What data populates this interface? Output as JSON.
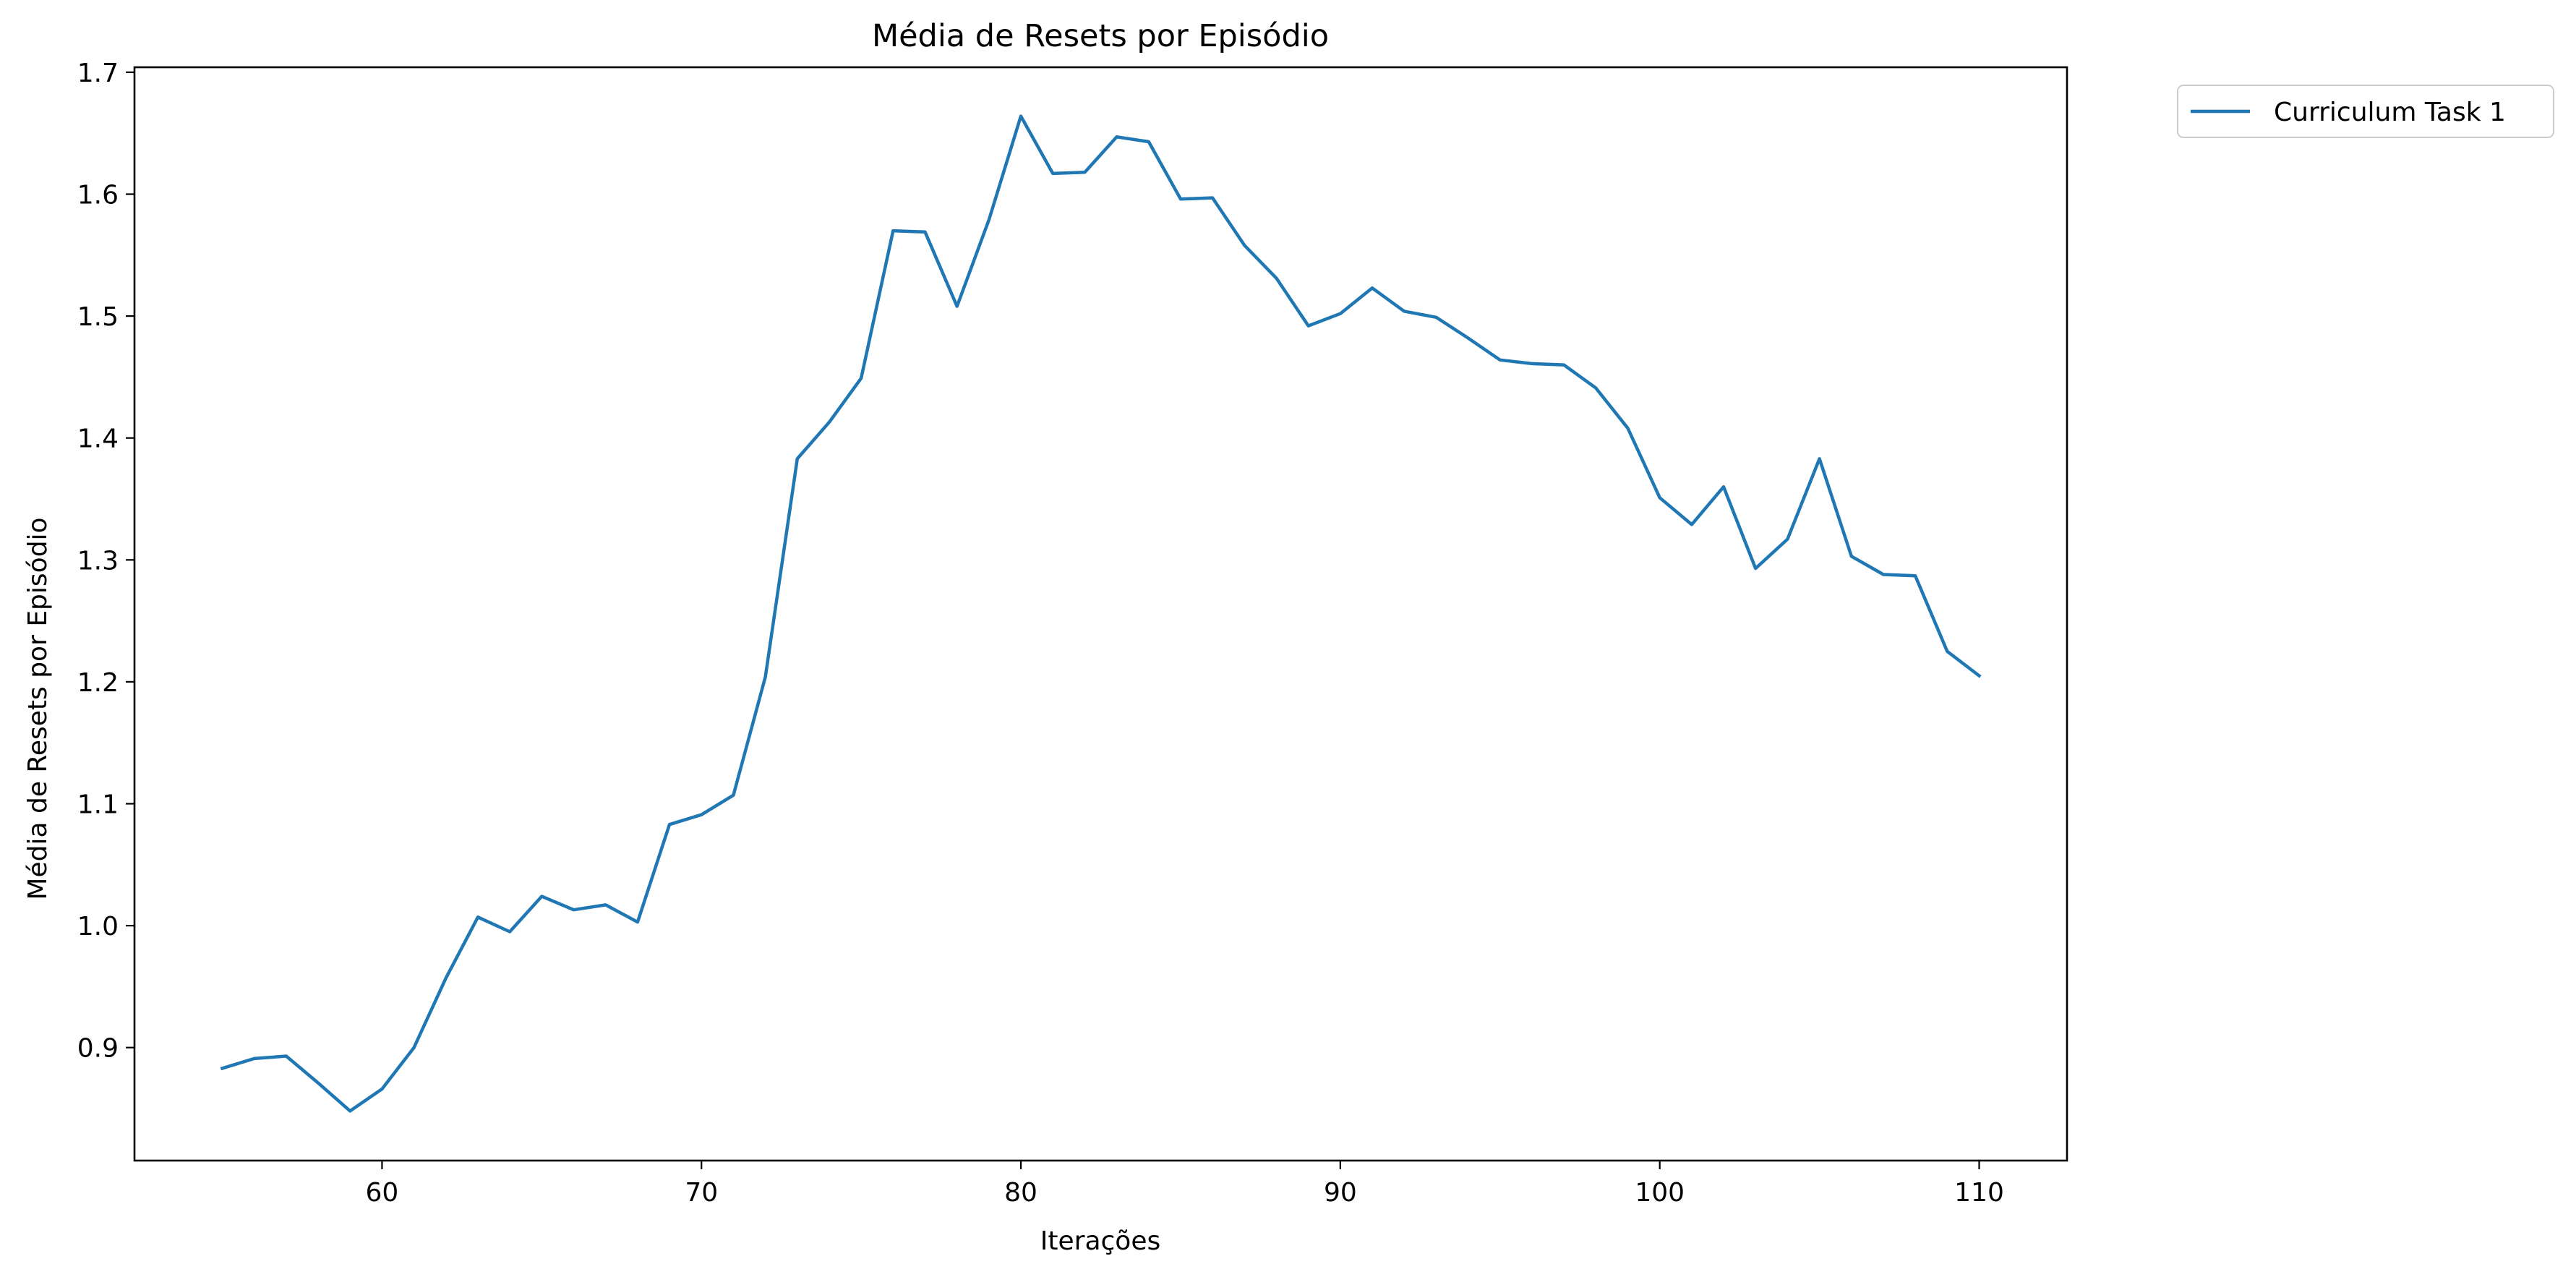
{
  "chart_data": {
    "type": "line",
    "title": "Média de Resets por Episódio",
    "xlabel": "Iterações",
    "ylabel": "Média de Resets por Episódio",
    "xlim": [
      52.25,
      112.75
    ],
    "ylim": [
      0.8073,
      1.7041
    ],
    "x_ticks": [
      60,
      70,
      80,
      90,
      100,
      110
    ],
    "x_tick_labels": [
      "60",
      "70",
      "80",
      "90",
      "100",
      "110"
    ],
    "y_ticks": [
      0.9,
      1.0,
      1.1,
      1.2,
      1.3,
      1.4,
      1.5,
      1.6,
      1.7
    ],
    "y_tick_labels": [
      "0.9",
      "1.0",
      "1.1",
      "1.2",
      "1.3",
      "1.4",
      "1.5",
      "1.6",
      "1.7"
    ],
    "grid": false,
    "legend": {
      "position": "outside-top-right"
    },
    "series": [
      {
        "name": "Curriculum Task 1",
        "color": "#1f77b4",
        "x": [
          55,
          56,
          57,
          58,
          59,
          60,
          61,
          62,
          63,
          64,
          65,
          66,
          67,
          68,
          69,
          70,
          71,
          72,
          73,
          74,
          75,
          76,
          77,
          78,
          79,
          80,
          81,
          82,
          83,
          84,
          85,
          86,
          87,
          88,
          89,
          90,
          91,
          92,
          93,
          94,
          95,
          96,
          97,
          98,
          99,
          100,
          101,
          102,
          103,
          104,
          105,
          106,
          107,
          108,
          109,
          110
        ],
        "values": [
          0.883,
          0.891,
          0.893,
          0.871,
          0.848,
          0.866,
          0.9,
          0.957,
          1.007,
          0.995,
          1.024,
          1.013,
          1.017,
          1.003,
          1.083,
          1.091,
          1.107,
          1.204,
          1.383,
          1.413,
          1.449,
          1.57,
          1.569,
          1.508,
          1.579,
          1.664,
          1.617,
          1.618,
          1.647,
          1.643,
          1.596,
          1.597,
          1.558,
          1.531,
          1.492,
          1.502,
          1.523,
          1.504,
          1.499,
          1.482,
          1.464,
          1.461,
          1.46,
          1.441,
          1.408,
          1.351,
          1.329,
          1.36,
          1.293,
          1.317,
          1.383,
          1.303,
          1.288,
          1.287,
          1.225,
          1.205
        ]
      }
    ]
  }
}
